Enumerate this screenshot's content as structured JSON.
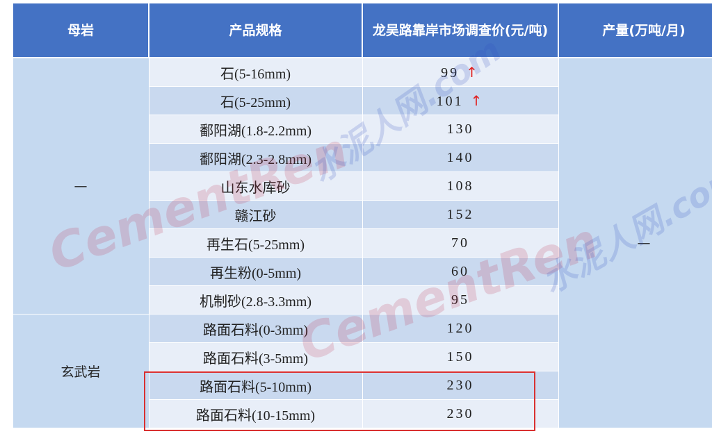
{
  "headers": [
    "母岩",
    "产品规格",
    "龙吴路靠岸市场调查价(元/吨)",
    "产量(万吨/月)"
  ],
  "groups": [
    {
      "rock": "—",
      "output": "—",
      "rows": [
        {
          "spec": "石(5-16mm)",
          "price": "99",
          "trend": "up"
        },
        {
          "spec": "石(5-25mm)",
          "price": "101",
          "trend": "up"
        },
        {
          "spec": "鄱阳湖(1.8-2.2mm)",
          "price": "130"
        },
        {
          "spec": "鄱阳湖(2.3-2.8mm)",
          "price": "140"
        },
        {
          "spec": "山东水库砂",
          "price": "108"
        },
        {
          "spec": "赣江砂",
          "price": "152"
        },
        {
          "spec": "再生石(5-25mm)",
          "price": "70"
        },
        {
          "spec": "再生粉(0-5mm)",
          "price": "60"
        },
        {
          "spec": "机制砂(2.8-3.3mm)",
          "price": "95"
        }
      ]
    },
    {
      "rock": "玄武岩",
      "rows": [
        {
          "spec": "路面石料(0-3mm)",
          "price": "120"
        },
        {
          "spec": "路面石料(3-5mm)",
          "price": "150"
        },
        {
          "spec": "路面石料(5-10mm)",
          "price": "230",
          "highlighted": true
        },
        {
          "spec": "路面石料(10-15mm)",
          "price": "230",
          "highlighted": true
        }
      ]
    }
  ],
  "arrow_glyph": "↑",
  "colors": {
    "header": "#4472c4",
    "highlight_box": "#d93030",
    "trend_up": "#e02020"
  },
  "watermark": {
    "cn": "水泥人网",
    "en": "CementRen",
    ".com": ".com"
  }
}
